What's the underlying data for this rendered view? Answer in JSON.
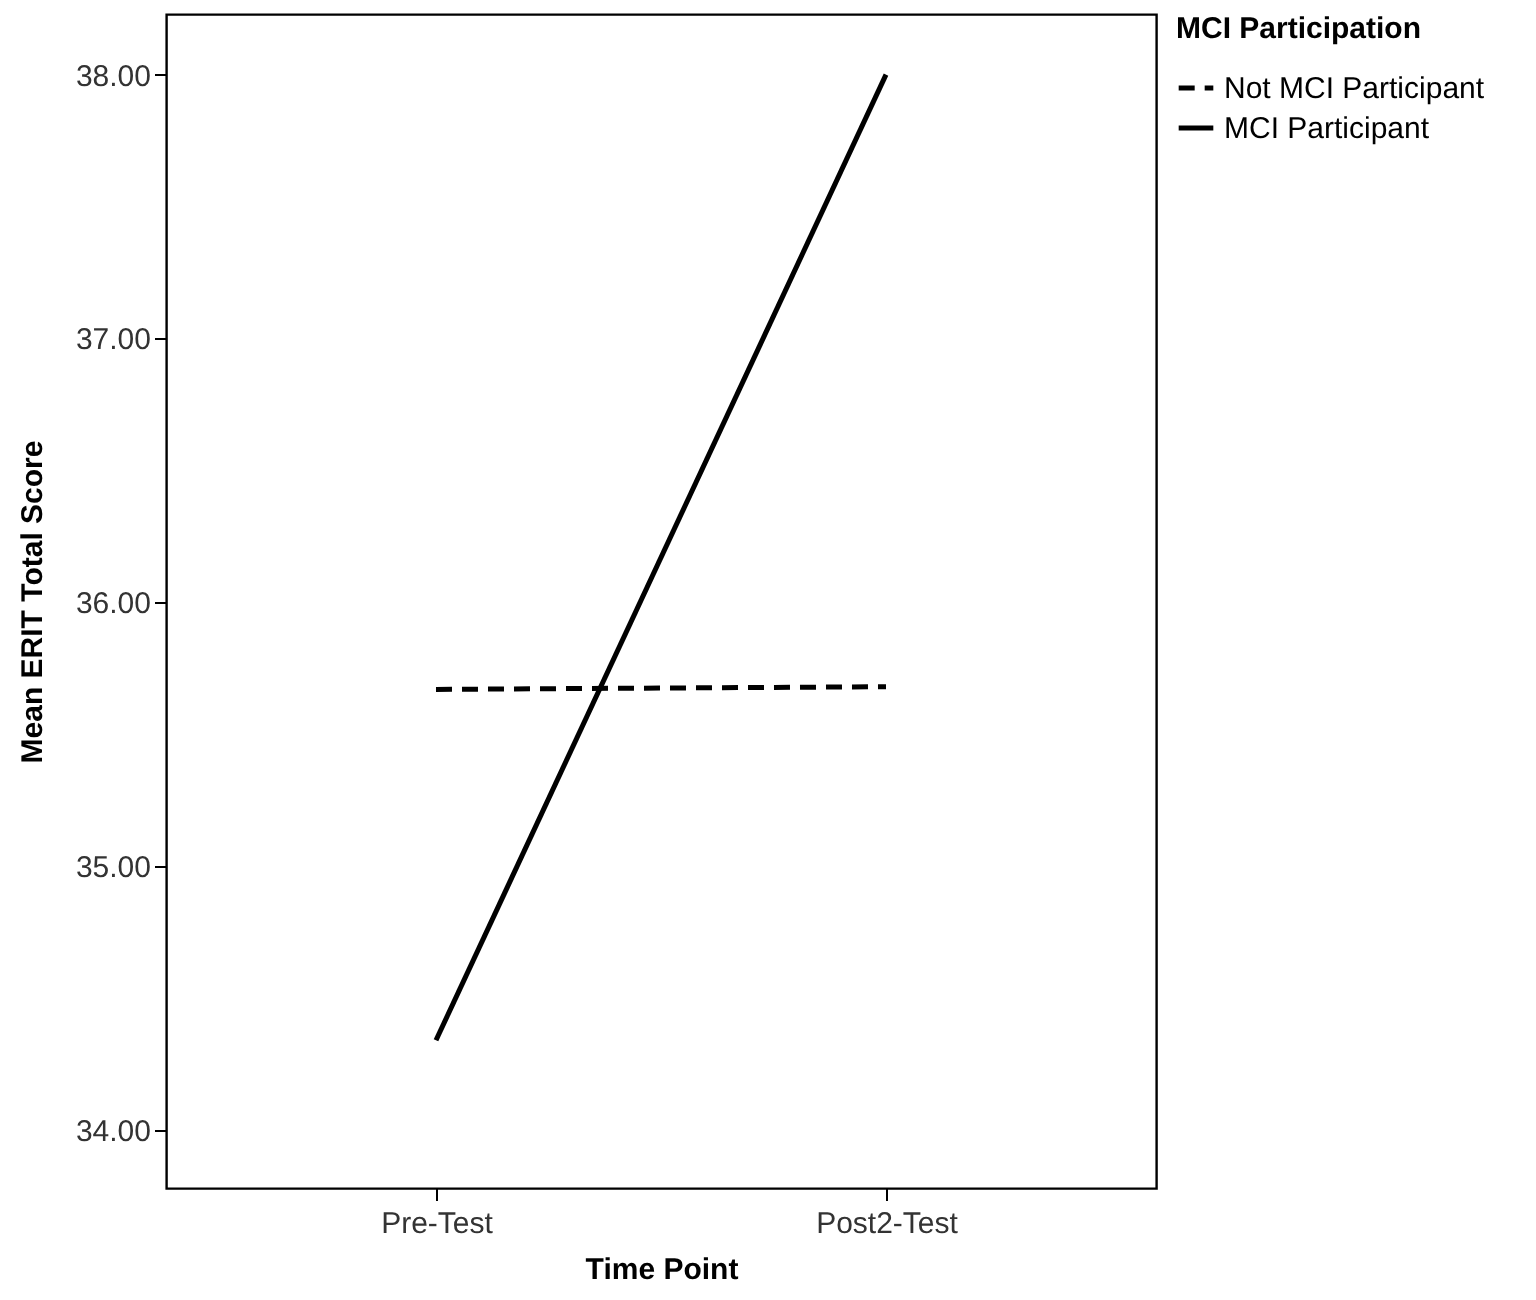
{
  "chart_data": {
    "type": "line",
    "xlabel": "Time Point",
    "ylabel": "Mean ERIT Total Score",
    "legend_title": "MCI Participation",
    "categories": [
      "Pre-Test",
      "Post2-Test"
    ],
    "series": [
      {
        "name": "Not MCI Participant",
        "color": "#000000",
        "line_style": "dashed",
        "values": [
          35.67,
          35.68
        ]
      },
      {
        "name": "MCI Participant",
        "color": "#000000",
        "line_style": "solid",
        "values": [
          34.34,
          38.0
        ]
      }
    ],
    "ylim": [
      33.78,
      38.23
    ],
    "yticks": [
      {
        "value": 34,
        "label": "34.00"
      },
      {
        "value": 35,
        "label": "35.00"
      },
      {
        "value": 36,
        "label": "36.00"
      },
      {
        "value": 37,
        "label": "37.00"
      },
      {
        "value": 38,
        "label": "38.00"
      }
    ],
    "grid": false,
    "legend": "top right",
    "marker": "none"
  }
}
